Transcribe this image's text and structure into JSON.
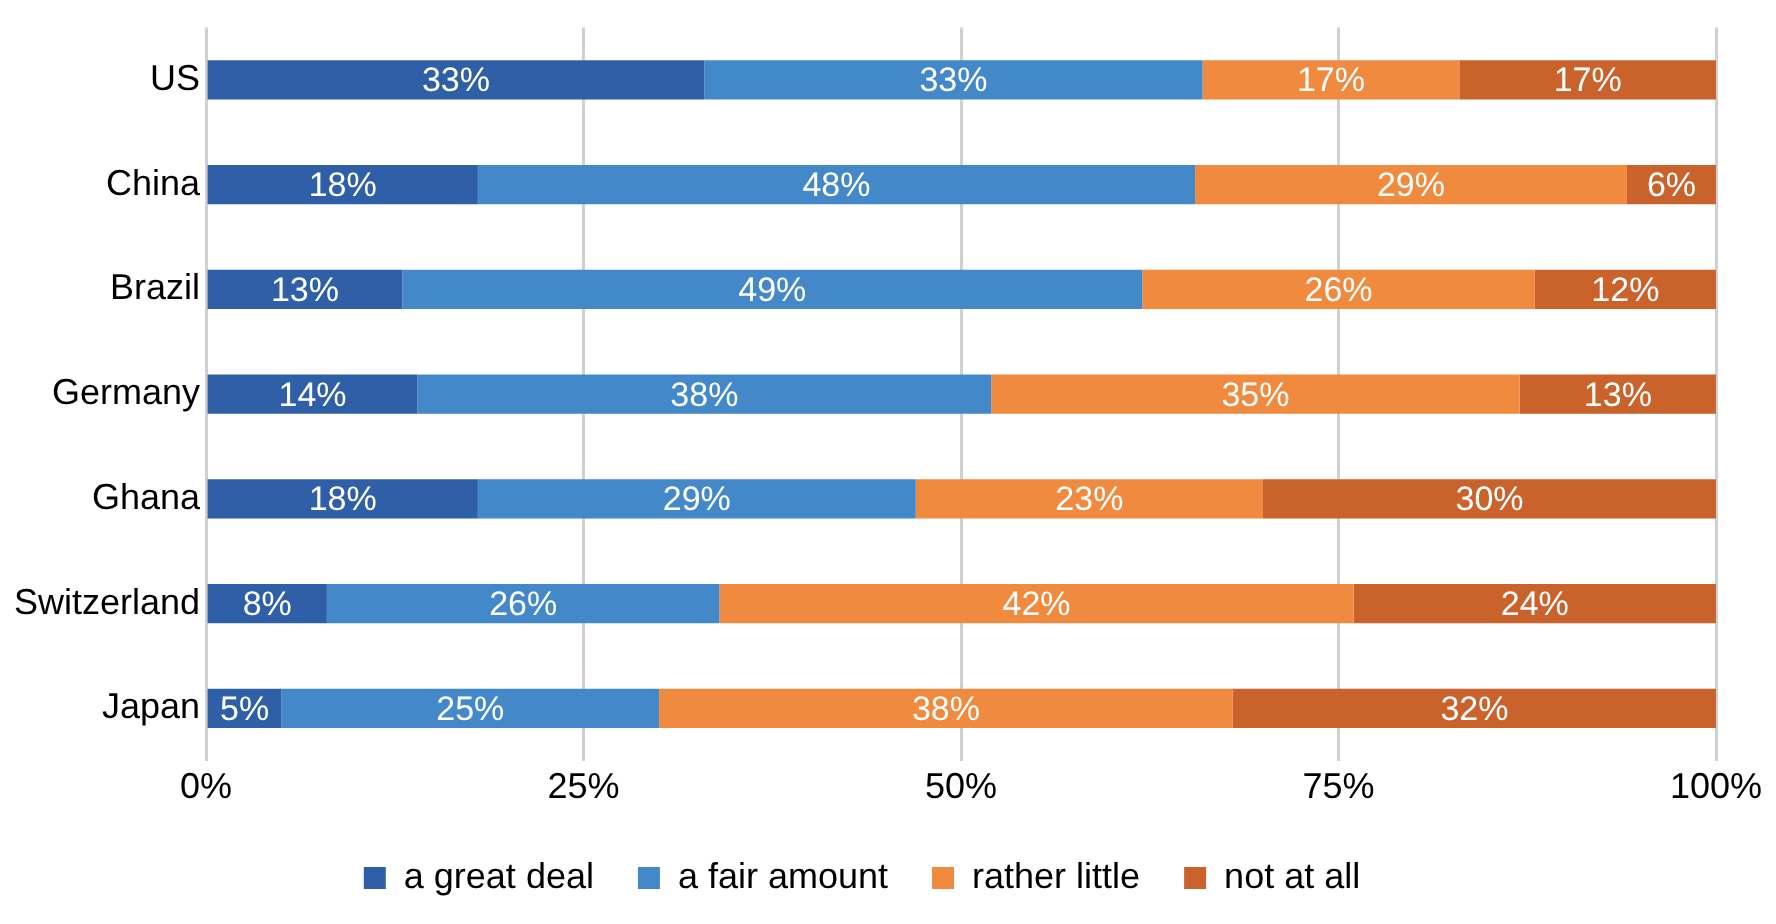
{
  "chart_data": {
    "type": "bar",
    "orientation": "horizontal",
    "stacked": true,
    "categories": [
      "US",
      "China",
      "Brazil",
      "Germany",
      "Ghana",
      "Switzerland",
      "Japan"
    ],
    "series": [
      {
        "name": "a great deal",
        "color": "#2f5fa7",
        "values": [
          33,
          18,
          13,
          14,
          18,
          8,
          5
        ],
        "value_labels": [
          "33%",
          "18%",
          "13%",
          "14%",
          "18%",
          "8%",
          "5%"
        ]
      },
      {
        "name": "a fair amount",
        "color": "#4389c9",
        "values": [
          33,
          47.5,
          49,
          38,
          29,
          26,
          25
        ],
        "value_labels": [
          "33%",
          "48%",
          "49%",
          "38%",
          "29%",
          "26%",
          "25%"
        ]
      },
      {
        "name": "rather little",
        "color": "#f08a3e",
        "values": [
          17,
          28.6,
          26,
          35,
          23,
          42,
          38
        ],
        "value_labels": [
          "17%",
          "29%",
          "26%",
          "35%",
          "23%",
          "42%",
          "38%"
        ]
      },
      {
        "name": "not at all",
        "color": "#c9622b",
        "values": [
          17,
          5.9,
          12,
          13,
          30,
          24,
          32
        ],
        "value_labels": [
          "17%",
          "6%",
          "12%",
          "13%",
          "30%",
          "24%",
          "32%"
        ]
      }
    ],
    "xlim": [
      0,
      100
    ],
    "xticks": [
      {
        "value": 0,
        "label": "0%"
      },
      {
        "value": 25,
        "label": "25%"
      },
      {
        "value": 50,
        "label": "50%"
      },
      {
        "value": 75,
        "label": "75%"
      },
      {
        "value": 100,
        "label": "100%"
      }
    ],
    "grid": "x",
    "legend": "bottom"
  }
}
